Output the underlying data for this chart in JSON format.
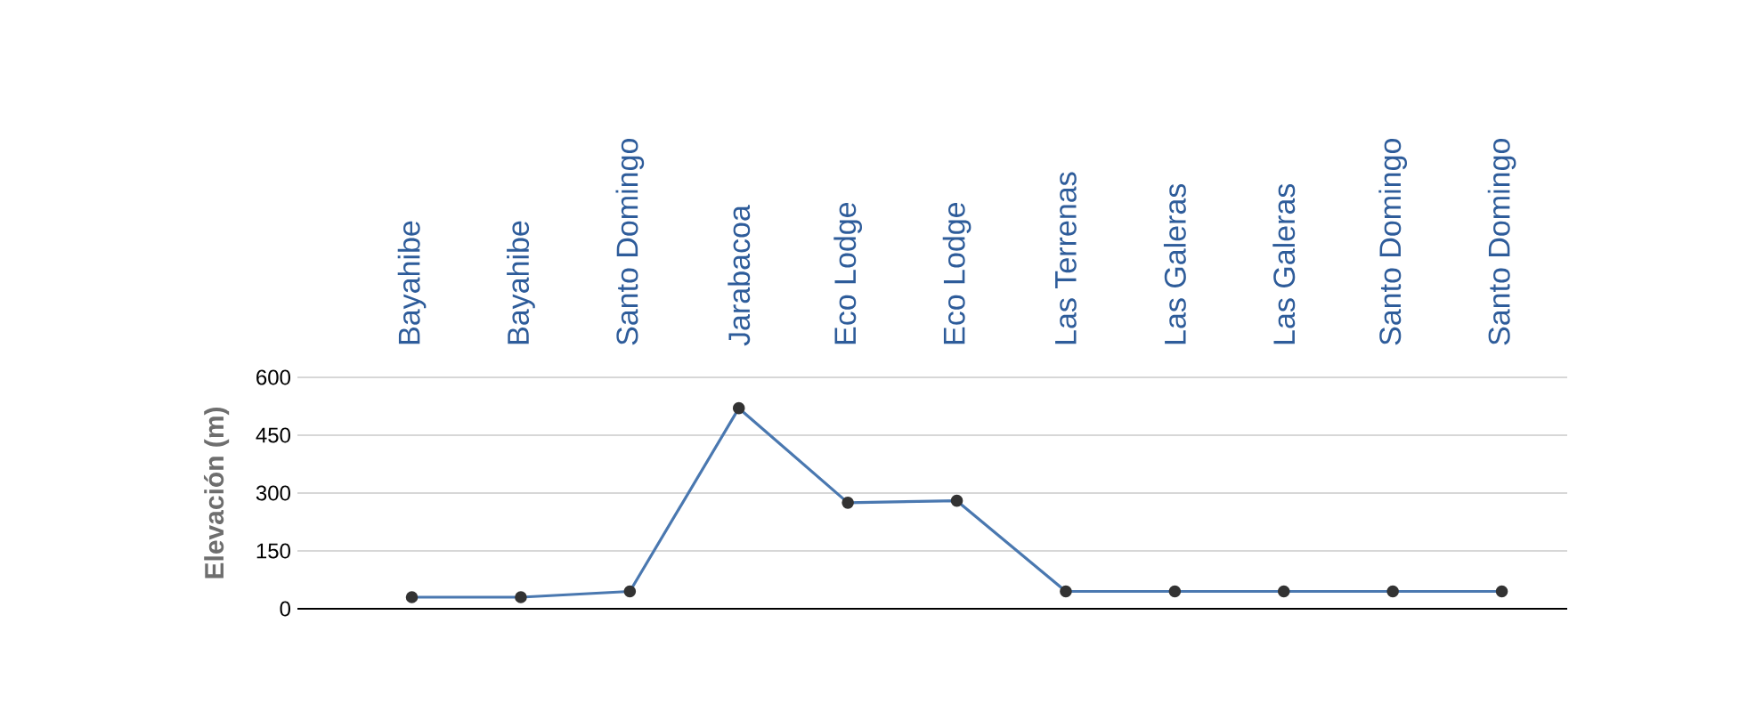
{
  "chart_data": {
    "type": "line",
    "ylabel": "Elevación (m)",
    "categories": [
      "Bayahibe",
      "Bayahibe",
      "Santo Domingo",
      "Jarabacoa",
      "Eco Lodge",
      "Eco Lodge",
      "Las Terrenas",
      "Las Galeras",
      "Las Galeras",
      "Santo Domingo",
      "Santo Domingo"
    ],
    "series": [
      {
        "color": "#4a78b0",
        "values": [
          30,
          30,
          45,
          520,
          275,
          280,
          45,
          45,
          45,
          45,
          45
        ]
      }
    ],
    "ylim": [
      0,
      600
    ],
    "yticks": [
      0,
      150,
      300,
      450,
      600
    ],
    "grid": "y",
    "marker": "circle",
    "line_style": "solid"
  }
}
